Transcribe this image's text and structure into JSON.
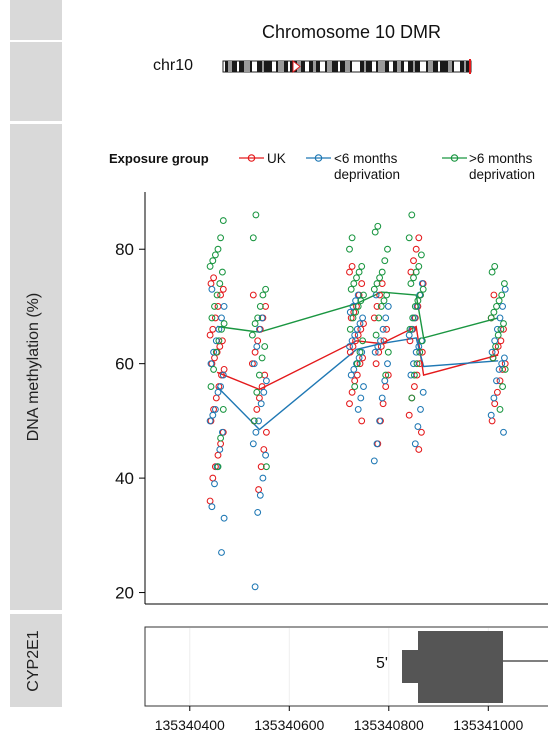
{
  "chart_data": {
    "type": "scatter",
    "title": "Chromosome 10 DMR",
    "ideogram_label": "chr10",
    "ylabel": "DNA methylation (%)",
    "gene_track_label": "CYP2E1",
    "gene_annotation": "5'",
    "legend": {
      "title": "Exposure group",
      "placement": "top"
    },
    "ylim": [
      18,
      90
    ],
    "yticks": [
      20,
      40,
      60,
      80
    ],
    "xlim": [
      135340310,
      135341120
    ],
    "xticks": [
      135340400,
      135340600,
      135340800,
      135341000
    ],
    "xtick_labels": [
      "135340400",
      "135340600",
      "135340800",
      "135341000"
    ],
    "series": [
      {
        "name": "UK",
        "color": "#e41a1c",
        "mean_line": {
          "x": [
            135340455,
            135340540,
            135340735,
            135340785,
            135340855,
            135340870,
            135341020
          ],
          "y": [
            58.5,
            55.5,
            64.0,
            63.5,
            66.5,
            58.0,
            61.5
          ]
        },
        "points": [
          {
            "x": 135340455,
            "values": [
              36,
              40,
              42,
              44,
              46,
              48,
              50,
              52,
              54,
              56,
              58,
              59,
              60,
              61,
              62,
              63,
              64,
              65,
              66,
              68,
              70,
              72,
              73,
              74,
              75
            ]
          },
          {
            "x": 135340540,
            "values": [
              38,
              42,
              45,
              48,
              50,
              52,
              54,
              56,
              58,
              60,
              62,
              64,
              66,
              68,
              70,
              72
            ]
          },
          {
            "x": 135340735,
            "values": [
              50,
              53,
              55,
              57,
              58,
              60,
              61,
              62,
              63,
              64,
              65,
              66,
              67,
              68,
              69,
              70,
              72,
              74,
              76,
              77
            ]
          },
          {
            "x": 135340785,
            "values": [
              46,
              50,
              53,
              56,
              58,
              60,
              62,
              63,
              64,
              66,
              68,
              70,
              72,
              74
            ]
          },
          {
            "x": 135340855,
            "values": [
              45,
              48,
              51,
              54,
              56,
              58,
              60,
              62,
              64,
              66,
              68,
              70,
              72,
              74,
              76,
              78,
              80,
              82
            ]
          },
          {
            "x": 135341020,
            "values": [
              50,
              53,
              55,
              57,
              59,
              60,
              61,
              62,
              63,
              64,
              66,
              68,
              72
            ]
          }
        ]
      },
      {
        "name": "<6 months deprivation",
        "color": "#1f78b4",
        "mean_line": {
          "x": [
            135340455,
            135340540,
            135340735,
            135340785,
            135340855,
            135340870,
            135341020
          ],
          "y": [
            56.0,
            48.5,
            62.5,
            63.5,
            64.5,
            59.5,
            60.5
          ]
        },
        "points": [
          {
            "x": 135340455,
            "values": [
              27,
              33,
              35,
              39,
              42,
              45,
              48,
              50,
              51,
              52,
              55,
              56,
              58,
              60,
              62,
              64,
              66,
              68,
              70,
              73
            ]
          },
          {
            "x": 135340540,
            "values": [
              21,
              34,
              37,
              40,
              44,
              46,
              48,
              50,
              53,
              55,
              57,
              60,
              63,
              66,
              68
            ]
          },
          {
            "x": 135340735,
            "values": [
              52,
              54,
              56,
              58,
              59,
              60,
              61,
              62,
              63,
              64,
              65,
              66,
              67,
              68,
              69,
              70,
              71,
              72
            ]
          },
          {
            "x": 135340785,
            "values": [
              43,
              46,
              50,
              54,
              57,
              60,
              62,
              63,
              64,
              66,
              68,
              70,
              72
            ]
          },
          {
            "x": 135340855,
            "values": [
              46,
              49,
              52,
              55,
              58,
              60,
              62,
              63,
              64,
              65,
              66,
              68,
              70,
              72,
              74
            ]
          },
          {
            "x": 135341020,
            "values": [
              48,
              51,
              54,
              57,
              59,
              60,
              61,
              62,
              64,
              66,
              68,
              70,
              73
            ]
          }
        ]
      },
      {
        "name": ">6 months deprivation",
        "color": "#1a9641",
        "mean_line": {
          "x": [
            135340455,
            135340540,
            135340735,
            135340785,
            135340855,
            135340870,
            135341020
          ],
          "y": [
            66.5,
            65.5,
            70.5,
            72.5,
            72.0,
            64.5,
            68.0
          ]
        },
        "points": [
          {
            "x": 135340455,
            "values": [
              42,
              47,
              52,
              56,
              59,
              62,
              64,
              66,
              67,
              68,
              70,
              72,
              74,
              76,
              77,
              78,
              79,
              80,
              82,
              85
            ]
          },
          {
            "x": 135340540,
            "values": [
              42,
              50,
              55,
              58,
              61,
              63,
              65,
              67,
              68,
              70,
              72,
              73,
              82,
              86
            ]
          },
          {
            "x": 135340735,
            "values": [
              56,
              60,
              62,
              64,
              66,
              68,
              69,
              70,
              71,
              72,
              73,
              74,
              75,
              76,
              77,
              80,
              82
            ]
          },
          {
            "x": 135340785,
            "values": [
              58,
              62,
              65,
              68,
              70,
              71,
              72,
              73,
              74,
              75,
              76,
              78,
              80,
              83,
              84
            ]
          },
          {
            "x": 135340855,
            "values": [
              54,
              58,
              60,
              62,
              64,
              66,
              68,
              70,
              71,
              72,
              73,
              74,
              75,
              76,
              77,
              79,
              82,
              86
            ]
          },
          {
            "x": 135341020,
            "values": [
              52,
              56,
              59,
              61,
              63,
              65,
              66,
              67,
              68,
              69,
              70,
              71,
              72,
              74,
              76,
              77
            ]
          }
        ]
      }
    ]
  },
  "colors": {
    "side_bar": "#d9d9d9",
    "gene": "#555555",
    "ideogram_marker": "#e41a1c"
  }
}
